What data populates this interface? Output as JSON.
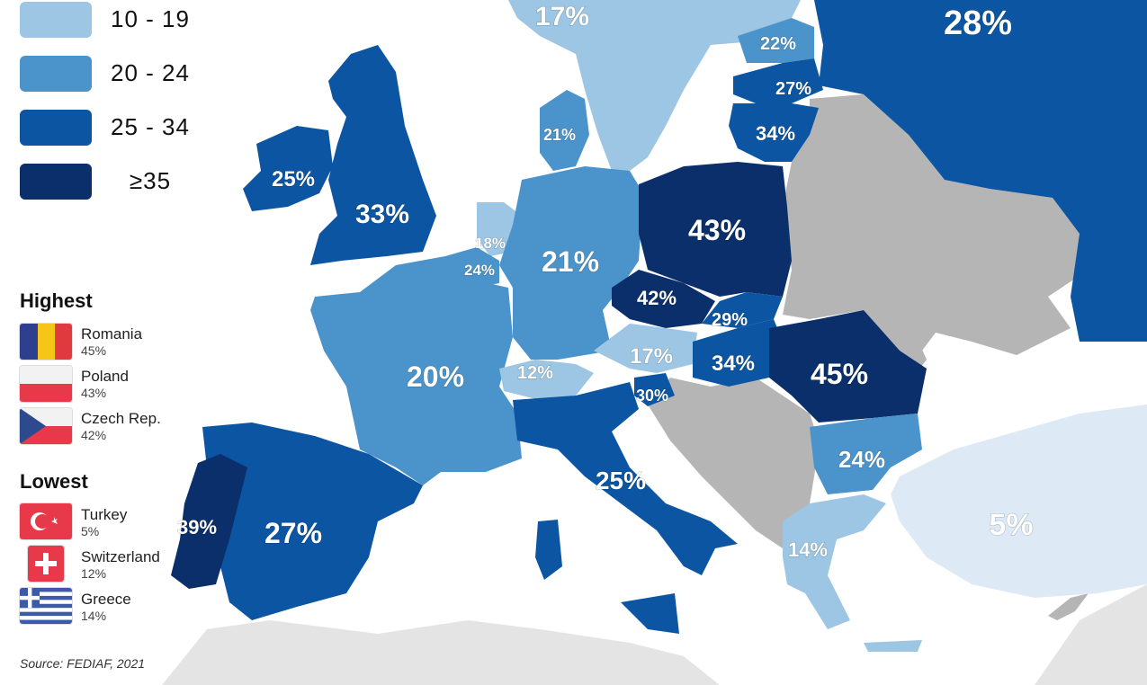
{
  "colors": {
    "sea": "#ffffff",
    "no_data": "#b5b5b5",
    "neighbor": "#e4e4e4",
    "bin_very_low": "#dde9f4",
    "bin_10_19": "#9cc6e3",
    "bin_20_24": "#4a93cb",
    "bin_25_34": "#0b55a3",
    "bin_35_plus": "#0b2f6b"
  },
  "legend": {
    "bins": [
      {
        "label": "10 - 19",
        "color": "#9cc6e3"
      },
      {
        "label": "20 - 24",
        "color": "#4a93cb"
      },
      {
        "label": "25 - 34",
        "color": "#0b55a3"
      },
      {
        "label": "≥35",
        "color": "#0b2f6b"
      }
    ]
  },
  "highest": {
    "title": "Highest",
    "items": [
      {
        "name": "Romania",
        "value": "45%",
        "flag": "romania-flag"
      },
      {
        "name": "Poland",
        "value": "43%",
        "flag": "poland-flag"
      },
      {
        "name": "Czech Rep.",
        "value": "42%",
        "flag": "czech-flag"
      }
    ]
  },
  "lowest": {
    "title": "Lowest",
    "items": [
      {
        "name": "Turkey",
        "value": "5%",
        "flag": "turkey-flag"
      },
      {
        "name": "Switzerland",
        "value": "12%",
        "flag": "switzerland-flag"
      },
      {
        "name": "Greece",
        "value": "14%",
        "flag": "greece-flag"
      }
    ]
  },
  "source": "Source: FEDIAF, 2021",
  "regions": [
    {
      "country": "Sweden",
      "value": "17%",
      "bin": "bin_10_19"
    },
    {
      "country": "Russia",
      "value": "28%",
      "bin": "bin_25_34"
    },
    {
      "country": "Estonia",
      "value": "22%",
      "bin": "bin_20_24"
    },
    {
      "country": "Latvia",
      "value": "27%",
      "bin": "bin_25_34"
    },
    {
      "country": "Lithuania",
      "value": "34%",
      "bin": "bin_25_34"
    },
    {
      "country": "Denmark",
      "value": "21%",
      "bin": "bin_20_24"
    },
    {
      "country": "Ireland",
      "value": "25%",
      "bin": "bin_25_34"
    },
    {
      "country": "United Kingdom",
      "value": "33%",
      "bin": "bin_25_34"
    },
    {
      "country": "Netherlands",
      "value": "18%",
      "bin": "bin_10_19"
    },
    {
      "country": "Belgium",
      "value": "24%",
      "bin": "bin_20_24"
    },
    {
      "country": "Germany",
      "value": "21%",
      "bin": "bin_20_24"
    },
    {
      "country": "Poland",
      "value": "43%",
      "bin": "bin_35_plus"
    },
    {
      "country": "Czech Republic",
      "value": "42%",
      "bin": "bin_35_plus"
    },
    {
      "country": "Slovakia",
      "value": "29%",
      "bin": "bin_25_34"
    },
    {
      "country": "Austria",
      "value": "17%",
      "bin": "bin_10_19"
    },
    {
      "country": "Hungary",
      "value": "34%",
      "bin": "bin_25_34"
    },
    {
      "country": "Romania",
      "value": "45%",
      "bin": "bin_35_plus"
    },
    {
      "country": "France",
      "value": "20%",
      "bin": "bin_20_24"
    },
    {
      "country": "Switzerland",
      "value": "12%",
      "bin": "bin_10_19"
    },
    {
      "country": "Slovenia",
      "value": "30%",
      "bin": "bin_25_34"
    },
    {
      "country": "Bulgaria",
      "value": "24%",
      "bin": "bin_20_24"
    },
    {
      "country": "Italy",
      "value": "25%",
      "bin": "bin_25_34"
    },
    {
      "country": "Portugal",
      "value": "39%",
      "bin": "bin_35_plus"
    },
    {
      "country": "Spain",
      "value": "27%",
      "bin": "bin_25_34"
    },
    {
      "country": "Greece",
      "value": "14%",
      "bin": "bin_10_19"
    },
    {
      "country": "Turkey",
      "value": "5%",
      "bin": "bin_very_low"
    }
  ]
}
